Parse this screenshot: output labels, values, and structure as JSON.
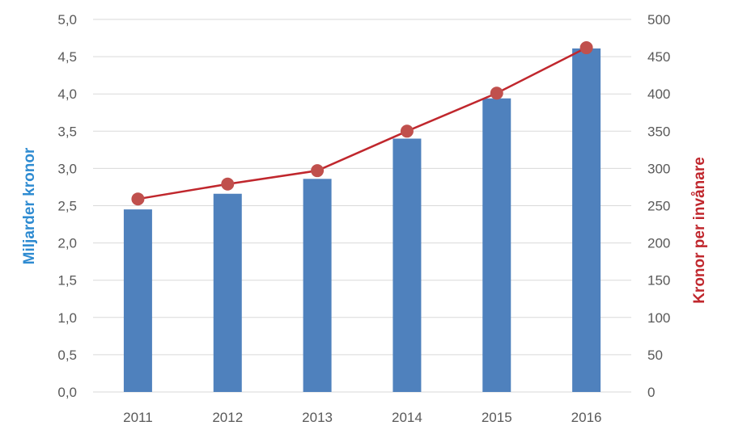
{
  "chart_data": {
    "type": "bar+line",
    "categories": [
      "2011",
      "2012",
      "2013",
      "2014",
      "2015",
      "2016"
    ],
    "series": [
      {
        "axis": "left",
        "type": "bar",
        "values": [
          2.45,
          2.66,
          2.86,
          3.4,
          3.94,
          4.61
        ]
      },
      {
        "axis": "right",
        "type": "line",
        "values": [
          259,
          279,
          297,
          350,
          401,
          462
        ]
      }
    ],
    "title": "",
    "xlabel": "",
    "ylabel_left": "Miljarder kronor",
    "ylabel_right": "Kronor per invånare",
    "ylim_left": [
      0,
      5
    ],
    "ylim_right": [
      0,
      500
    ],
    "y_ticks_left": [
      "0,0",
      "0,5",
      "1,0",
      "1,5",
      "2,0",
      "2,5",
      "3,0",
      "3,5",
      "4,0",
      "4,5",
      "5,0"
    ],
    "y_ticks_right": [
      "0",
      "50",
      "100",
      "150",
      "200",
      "250",
      "300",
      "350",
      "400",
      "450",
      "500"
    ],
    "grid": true,
    "legend": "none",
    "colors": {
      "bar": "#4f81bd",
      "line": "#c0272d",
      "marker": "#c0504d",
      "ylabel_left": "#2e8bd1",
      "ylabel_right": "#c0272d",
      "grid": "#d9d9d9"
    }
  }
}
